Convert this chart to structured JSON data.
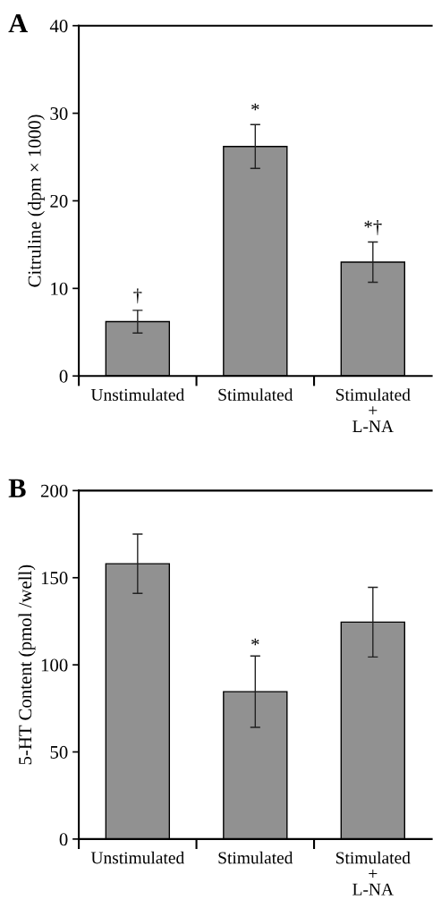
{
  "chart_data": [
    {
      "type": "bar",
      "title": "A",
      "ylabel": "Citruline (dpm × 1000)",
      "categories": [
        "Unstimulated",
        "Stimulated",
        "Stimulated\n+\nL-NA"
      ],
      "values": [
        6.2,
        26.2,
        13.0
      ],
      "errors": [
        1.3,
        2.5,
        2.3
      ],
      "color": "#919191",
      "ylim": [
        0,
        40
      ],
      "yticks": [
        0,
        10,
        20,
        30,
        40
      ],
      "grid": false,
      "legend": false,
      "annotations": [
        {
          "text": "†",
          "x": "Unstimulated",
          "y": 7.5
        },
        {
          "text": "*",
          "x": "Stimulated",
          "y": 28.7
        },
        {
          "text": "*†",
          "x": "Stimulated\n+\nL-NA",
          "y": 15.3
        }
      ]
    },
    {
      "type": "bar",
      "title": "B",
      "ylabel": "5-HT Content (pmol /well)",
      "categories": [
        "Unstimulated",
        "Stimulated",
        "Stimulated\n+\nL-NA"
      ],
      "values": [
        158,
        84.6,
        124.5
      ],
      "errors": [
        17,
        20.5,
        20
      ],
      "color": "#919191",
      "ylim": [
        0,
        200
      ],
      "yticks": [
        0,
        50,
        100,
        150,
        200
      ],
      "grid": false,
      "legend": false,
      "annotations": [
        {
          "text": "*",
          "x": "Stimulated",
          "y": 103
        }
      ]
    }
  ]
}
